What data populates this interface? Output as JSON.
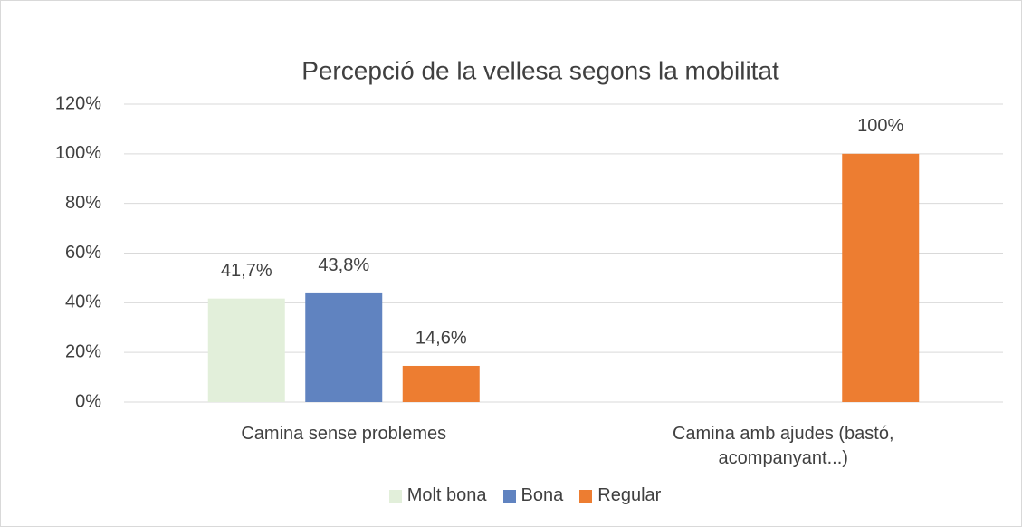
{
  "chart_data": {
    "type": "bar",
    "title": "Percepció de la vellesa segons la mobilitat",
    "categories": [
      "Camina sense problemes",
      "Camina amb ajudes (bastó, acompanyant...)"
    ],
    "series": [
      {
        "name": "Molt bona",
        "color": "#e2efda",
        "values": [
          41.7,
          null
        ],
        "value_labels": [
          "41,7%",
          null
        ]
      },
      {
        "name": "Bona",
        "color": "#6083c0",
        "values": [
          43.8,
          null
        ],
        "value_labels": [
          "43,8%",
          null
        ]
      },
      {
        "name": "Regular",
        "color": "#ed7d31",
        "values": [
          14.6,
          100
        ],
        "value_labels": [
          "14,6%",
          "100%"
        ]
      }
    ],
    "ylim": [
      0,
      120
    ],
    "yticks": [
      {
        "value": 0,
        "label": "0%"
      },
      {
        "value": 20,
        "label": "20%"
      },
      {
        "value": 40,
        "label": "40%"
      },
      {
        "value": 60,
        "label": "60%"
      },
      {
        "value": 80,
        "label": "80%"
      },
      {
        "value": 100,
        "label": "100%"
      },
      {
        "value": 120,
        "label": "120%"
      }
    ],
    "grid": true,
    "legend": "bottom"
  }
}
